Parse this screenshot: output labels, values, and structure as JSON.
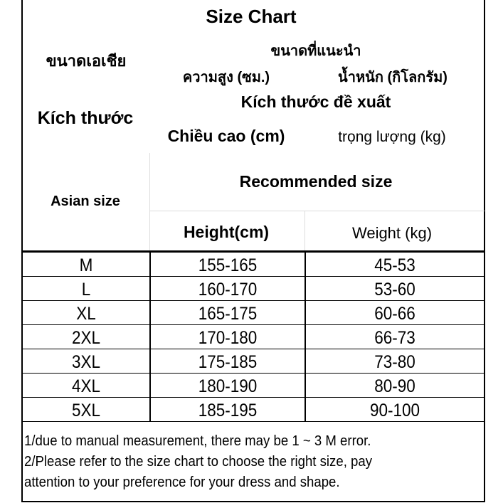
{
  "title": "Size Chart",
  "header": {
    "thai": {
      "asian_size": "ขนาดเอเชีย",
      "recommended": "ขนาดที่แนะนำ",
      "height": "ความสูง (ซม.)",
      "weight": "น้ำหนัก (กิโลกรัม)"
    },
    "vietnamese": {
      "asian_size": "Kích thước",
      "recommended": "Kích thước đề xuất",
      "height": "Chiều cao (cm)",
      "weight": "trọng lượng (kg)"
    },
    "english": {
      "asian_size": "Asian size",
      "recommended": "Recommended size",
      "height": "Height(cm)",
      "weight": "Weight (kg)"
    }
  },
  "rows": [
    {
      "size": "M",
      "height": "155-165",
      "weight": "45-53"
    },
    {
      "size": "L",
      "height": "160-170",
      "weight": "53-60"
    },
    {
      "size": "XL",
      "height": "165-175",
      "weight": "60-66"
    },
    {
      "size": "2XL",
      "height": "170-180",
      "weight": "66-73"
    },
    {
      "size": "3XL",
      "height": "175-185",
      "weight": "73-80"
    },
    {
      "size": "4XL",
      "height": "180-190",
      "weight": "80-90"
    },
    {
      "size": "5XL",
      "height": "185-195",
      "weight": "90-100"
    }
  ],
  "notes": [
    "1/due to manual measurement, there may be 1 ~ 3 M error.",
    "2/Please refer to the size chart to choose the right size, pay",
    "attention to your preference for your dress and shape."
  ]
}
